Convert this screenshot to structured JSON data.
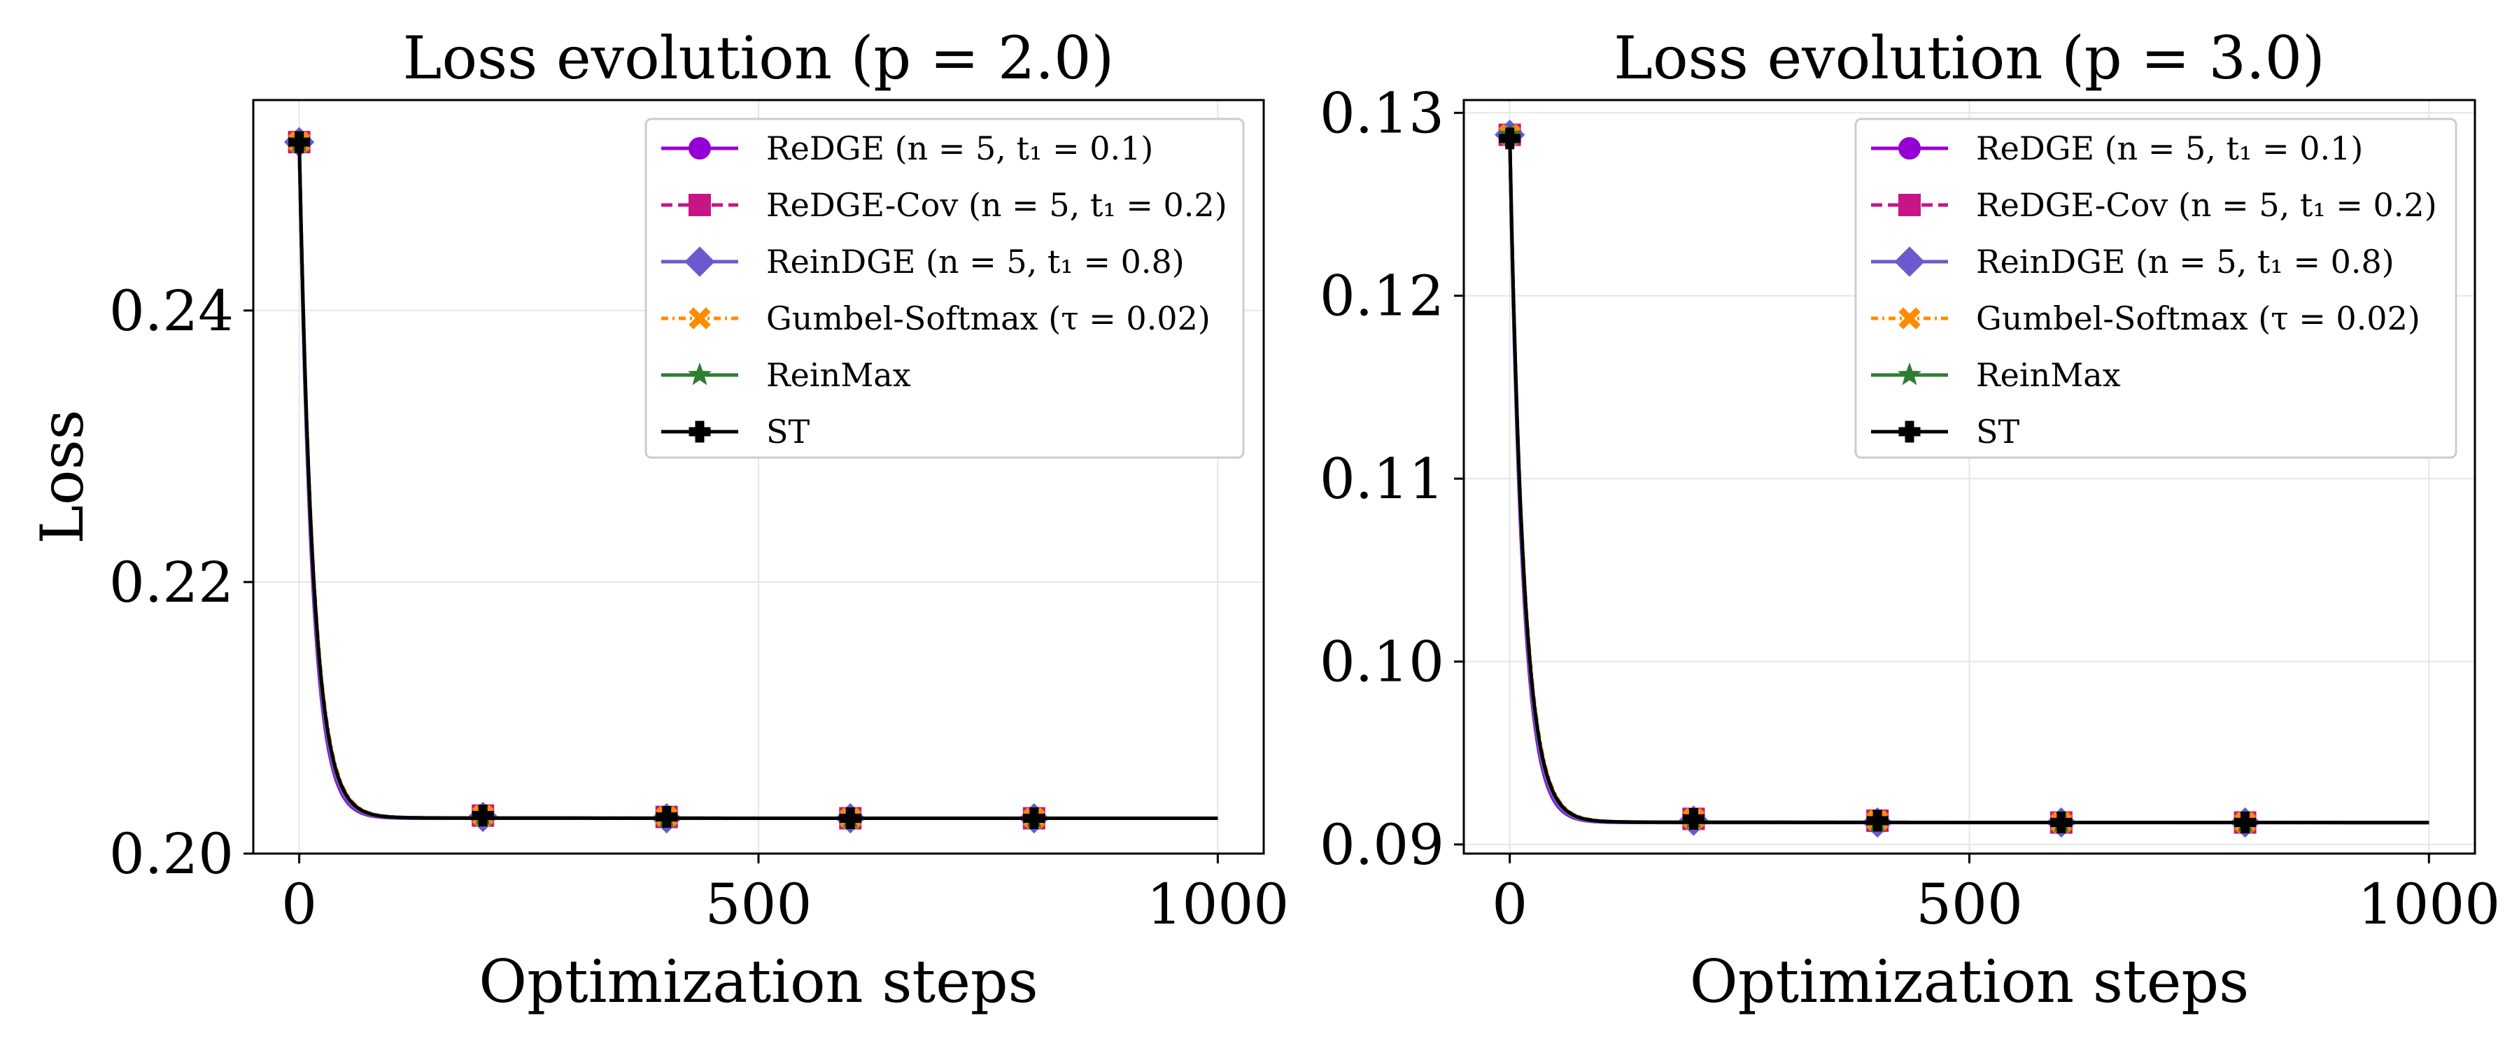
{
  "figure": {
    "method_styles": [
      {
        "key": "redge",
        "color": "#9400D3",
        "dash": "none",
        "marker": "circle",
        "offset": 0.0
      },
      {
        "key": "redge_cov",
        "color": "#C71585",
        "dash": "16,8",
        "marker": "square",
        "offset": 0.0015
      },
      {
        "key": "reindge",
        "color": "#6A5ACD",
        "dash": "none",
        "marker": "diamond",
        "offset": 0.0008
      },
      {
        "key": "gumbel",
        "color": "#FF8C00",
        "dash": "10,6,3,6",
        "marker": "x",
        "offset": 0.0025
      },
      {
        "key": "reinmax",
        "color": "#2E7D32",
        "dash": "none",
        "marker": "star",
        "offset": 0.0018
      },
      {
        "key": "st",
        "color": "#000000",
        "dash": "none",
        "marker": "plus",
        "offset": 0.002
      }
    ]
  },
  "chart_data": [
    {
      "type": "line",
      "title": "Loss evolution (p = 2.0)",
      "xlabel": "Optimization steps",
      "ylabel": "Loss",
      "xlim": [
        -50,
        1050
      ],
      "ylim": [
        0.2,
        0.2555
      ],
      "xticks": [
        0,
        500,
        1000
      ],
      "xtick_labels": [
        "0",
        "500",
        "1000"
      ],
      "yticks": [
        0.2,
        0.22,
        0.24
      ],
      "ytick_labels": [
        "0.20",
        "0.22",
        "0.24"
      ],
      "grid": true,
      "legend_position": "top-right",
      "curve": {
        "start": 0.2524,
        "end": 0.2026,
        "tau": 14
      },
      "marker_x": [
        0,
        200,
        400,
        600,
        800
      ],
      "series": [
        {
          "name": "ReDGE (n = 5, t₁ = 0.1)",
          "x": [
            0,
            200,
            400,
            600,
            800,
            1000
          ],
          "values": [
            0.2524,
            0.2027,
            0.2026,
            0.2026,
            0.2026,
            0.2026
          ]
        },
        {
          "name": "ReDGE-Cov (n = 5, t₁ = 0.2)",
          "x": [
            0,
            200,
            400,
            600,
            800,
            1000
          ],
          "values": [
            0.2524,
            0.2028,
            0.2027,
            0.2026,
            0.2026,
            0.2026
          ]
        },
        {
          "name": "ReinDGE (n = 5, t₁ = 0.8)",
          "x": [
            0,
            200,
            400,
            600,
            800,
            1000
          ],
          "values": [
            0.2524,
            0.2027,
            0.2026,
            0.2026,
            0.2026,
            0.2026
          ]
        },
        {
          "name": "Gumbel-Softmax (τ = 0.02)",
          "x": [
            0,
            200,
            400,
            600,
            800,
            1000
          ],
          "values": [
            0.2524,
            0.2028,
            0.2027,
            0.2026,
            0.2026,
            0.2026
          ]
        },
        {
          "name": "ReinMax",
          "x": [
            0,
            200,
            400,
            600,
            800,
            1000
          ],
          "values": [
            0.2524,
            0.2028,
            0.2026,
            0.2026,
            0.2026,
            0.2026
          ]
        },
        {
          "name": "ST",
          "x": [
            0,
            200,
            400,
            600,
            800,
            1000
          ],
          "values": [
            0.2524,
            0.2028,
            0.2027,
            0.2026,
            0.2026,
            0.2026
          ]
        }
      ]
    },
    {
      "type": "line",
      "title": "Loss evolution (p = 3.0)",
      "xlabel": "Optimization steps",
      "ylabel": "",
      "xlim": [
        -50,
        1050
      ],
      "ylim": [
        0.0895,
        0.1307
      ],
      "xticks": [
        0,
        500,
        1000
      ],
      "xtick_labels": [
        "0",
        "500",
        "1000"
      ],
      "yticks": [
        0.09,
        0.1,
        0.11,
        0.12,
        0.13
      ],
      "ytick_labels": [
        "0.09",
        "0.10",
        "0.11",
        "0.12",
        "0.13"
      ],
      "grid": true,
      "legend_position": "top-right",
      "curve": {
        "start": 0.1286,
        "end": 0.0912,
        "tau": 14
      },
      "marker_x": [
        0,
        200,
        400,
        600,
        800
      ],
      "series": [
        {
          "name": "ReDGE (n = 5, t₁ = 0.1)",
          "x": [
            0,
            200,
            400,
            600,
            800,
            1000
          ],
          "values": [
            0.1288,
            0.0913,
            0.0912,
            0.0912,
            0.0912,
            0.0912
          ]
        },
        {
          "name": "ReDGE-Cov (n = 5, t₁ = 0.2)",
          "x": [
            0,
            200,
            400,
            600,
            800,
            1000
          ],
          "values": [
            0.1288,
            0.0914,
            0.0913,
            0.0912,
            0.0912,
            0.0912
          ]
        },
        {
          "name": "ReinDGE (n = 5, t₁ = 0.8)",
          "x": [
            0,
            200,
            400,
            600,
            800,
            1000
          ],
          "values": [
            0.1288,
            0.0913,
            0.0912,
            0.0912,
            0.0912,
            0.0912
          ]
        },
        {
          "name": "Gumbel-Softmax (τ = 0.02)",
          "x": [
            0,
            200,
            400,
            600,
            800,
            1000
          ],
          "values": [
            0.1288,
            0.0914,
            0.0913,
            0.0912,
            0.0912,
            0.0912
          ]
        },
        {
          "name": "ReinMax",
          "x": [
            0,
            200,
            400,
            600,
            800,
            1000
          ],
          "values": [
            0.1288,
            0.0914,
            0.0912,
            0.0912,
            0.0912,
            0.0912
          ]
        },
        {
          "name": "ST",
          "x": [
            0,
            200,
            400,
            600,
            800,
            1000
          ],
          "values": [
            0.1286,
            0.0914,
            0.0913,
            0.0912,
            0.0912,
            0.0912
          ]
        }
      ]
    }
  ]
}
